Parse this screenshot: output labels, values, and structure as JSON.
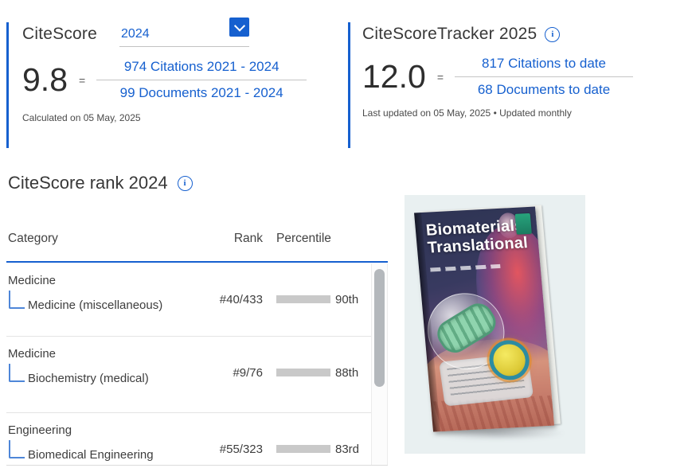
{
  "colors": {
    "accent_blue": "#1660cf",
    "bar_gray": "#c9c9c9",
    "tree_connector_blue": "#4e86d8"
  },
  "icons": {
    "info": "i"
  },
  "citescore": {
    "title": "CiteScore",
    "year": "2024",
    "score": "9.8",
    "equals": "=",
    "numerator": "974 Citations 2021 - 2024",
    "denominator": "99 Documents 2021 - 2024",
    "footnote": "Calculated on 05 May, 2025"
  },
  "tracker": {
    "title": "CiteScoreTracker 2025",
    "score": "12.0",
    "equals": "=",
    "numerator": "817 Citations to date",
    "denominator": "68 Documents to date",
    "footnote": "Last updated on 05 May, 2025 • Updated monthly"
  },
  "rank": {
    "title": "CiteScore rank 2024",
    "col_category": "Category",
    "col_rank": "Rank",
    "col_percentile": "Percentile",
    "rows": [
      {
        "parent": "Medicine",
        "sub": "Medicine (miscellaneous)",
        "rank": "#40/433",
        "percentile_label": "90th",
        "percentile_value": 90
      },
      {
        "parent": "Medicine",
        "sub": "Biochemistry (medical)",
        "rank": "#9/76",
        "percentile_label": "88th",
        "percentile_value": 88
      },
      {
        "parent": "Engineering",
        "sub": "Biomedical Engineering",
        "rank": "#55/323",
        "percentile_label": "83rd",
        "percentile_value": 83
      }
    ]
  },
  "cover": {
    "title_line1": "Biomaterials",
    "title_line2": "Translational"
  }
}
